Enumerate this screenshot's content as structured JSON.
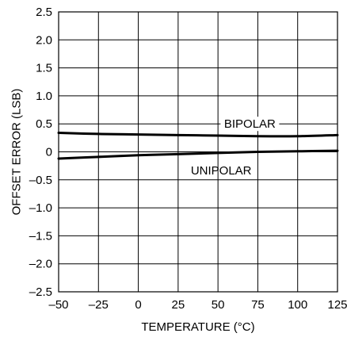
{
  "chart_data": {
    "type": "line",
    "xlabel": "TEMPERATURE (°C)",
    "ylabel": "OFFSET ERROR (LSB)",
    "xlim": [
      -50,
      125
    ],
    "ylim": [
      -2.5,
      2.5
    ],
    "x_ticks": [
      -50,
      -25,
      0,
      25,
      50,
      75,
      100,
      125
    ],
    "x_tick_labels": [
      "–50",
      "–25",
      "0",
      "25",
      "50",
      "75",
      "100",
      "125"
    ],
    "y_ticks": [
      2.5,
      2.0,
      1.5,
      1.0,
      0.5,
      0,
      -0.5,
      -1.0,
      -1.5,
      -2.0,
      -2.5
    ],
    "y_tick_labels": [
      "2.5",
      "2.0",
      "1.5",
      "1.0",
      "0.5",
      "0",
      "–0.5",
      "–1.0",
      "–1.5",
      "–2.0",
      "–2.5"
    ],
    "grid": true,
    "series": [
      {
        "name": "BIPOLAR",
        "x": [
          -50,
          -25,
          0,
          25,
          50,
          75,
          100,
          125
        ],
        "y": [
          0.34,
          0.32,
          0.31,
          0.3,
          0.29,
          0.28,
          0.28,
          0.3
        ]
      },
      {
        "name": "UNIPOLAR",
        "x": [
          -50,
          -25,
          0,
          25,
          50,
          75,
          100,
          125
        ],
        "y": [
          -0.12,
          -0.09,
          -0.06,
          -0.04,
          -0.02,
          0.0,
          0.01,
          0.02
        ]
      }
    ]
  }
}
